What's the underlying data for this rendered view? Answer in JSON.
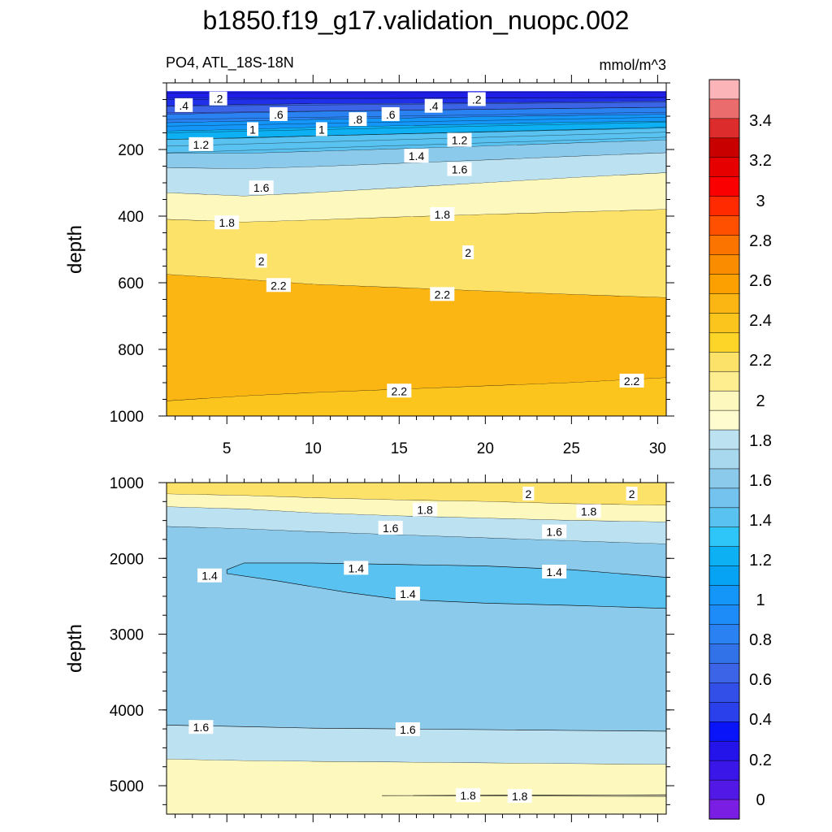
{
  "figure": {
    "title": "b1850.f19_g17.validation_nuopc.002",
    "left_subtitle": "PO4, ATL_18S-18N",
    "right_subtitle": "mmol/m^3"
  },
  "chart_data": [
    {
      "type": "heatmap",
      "panel": "upper",
      "variable": "PO4",
      "region": "ATL_18S-18N",
      "units": "mmol/m^3",
      "xlabel": "",
      "ylabel": "depth",
      "xlim": [
        1.5,
        30.5
      ],
      "ylim": [
        0,
        1000
      ],
      "y_reversed": true,
      "x_ticks": [
        5,
        10,
        15,
        20,
        25,
        30
      ],
      "y_ticks": [
        200,
        400,
        600,
        800,
        1000
      ],
      "bands": [
        {
          "value": 0.1,
          "color": "#1e1ee6",
          "y0": [
            25,
            25,
            25,
            25,
            25,
            25,
            25
          ],
          "y1": [
            45,
            45,
            45,
            45,
            45,
            45,
            45
          ]
        },
        {
          "value": 0.3,
          "color": "#2030e8",
          "y0": [
            45,
            45,
            45,
            45,
            45,
            45,
            45
          ],
          "y1": [
            70,
            65,
            63,
            62,
            60,
            58,
            55
          ]
        },
        {
          "value": 0.5,
          "color": "#3c64e6",
          "y0": [
            70,
            65,
            63,
            62,
            60,
            58,
            55
          ],
          "y1": [
            95,
            90,
            86,
            83,
            80,
            77,
            74
          ]
        },
        {
          "value": 0.7,
          "color": "#2a82f2",
          "y0": [
            95,
            90,
            86,
            83,
            80,
            77,
            74
          ],
          "y1": [
            120,
            115,
            110,
            106,
            102,
            98,
            95
          ]
        },
        {
          "value": 0.9,
          "color": "#1496f8",
          "y0": [
            120,
            115,
            110,
            106,
            102,
            98,
            95
          ],
          "y1": [
            145,
            140,
            134,
            129,
            124,
            119,
            115
          ]
        },
        {
          "value": 1.1,
          "color": "#0eb0f4",
          "y0": [
            145,
            140,
            134,
            129,
            124,
            119,
            115
          ],
          "y1": [
            170,
            166,
            160,
            154,
            148,
            142,
            136
          ]
        },
        {
          "value": 1.3,
          "color": "#5ac2f0",
          "y0": [
            170,
            166,
            160,
            154,
            148,
            142,
            136
          ],
          "y1": [
            212,
            212,
            206,
            198,
            190,
            181,
            172
          ]
        },
        {
          "value": 1.5,
          "color": "#8ccaec",
          "y0": [
            212,
            212,
            206,
            198,
            190,
            181,
            172
          ],
          "y1": [
            255,
            258,
            252,
            242,
            232,
            221,
            210
          ]
        },
        {
          "value": 1.7,
          "color": "#bce2f2",
          "y0": [
            255,
            258,
            252,
            242,
            232,
            221,
            210
          ],
          "y1": [
            330,
            340,
            330,
            315,
            300,
            285,
            270
          ]
        },
        {
          "value": 1.9,
          "color": "#fdf9be",
          "y0": [
            330,
            340,
            330,
            315,
            300,
            285,
            270
          ],
          "y1": [
            410,
            418,
            412,
            403,
            395,
            388,
            380
          ]
        },
        {
          "value": 2.1,
          "color": "#fde26a",
          "y0": [
            410,
            418,
            412,
            403,
            395,
            388,
            380
          ],
          "y1": [
            575,
            590,
            605,
            615,
            625,
            635,
            645
          ]
        },
        {
          "value": 2.3,
          "color": "#fbb614",
          "y0": [
            575,
            590,
            605,
            615,
            625,
            635,
            645
          ],
          "y1": [
            955,
            940,
            930,
            920,
            910,
            900,
            885
          ]
        },
        {
          "value": 2.2,
          "color": "#fcc51e",
          "y0": [
            955,
            940,
            930,
            920,
            910,
            900,
            885
          ],
          "y1": [
            1000,
            1000,
            1000,
            1000,
            1000,
            1000,
            1000
          ]
        }
      ],
      "contour_labels": [
        {
          "text": ".4",
          "x": 2.5,
          "y": 68
        },
        {
          "text": ".2",
          "x": 4.5,
          "y": 48
        },
        {
          "text": ".6",
          "x": 8.0,
          "y": 95
        },
        {
          "text": ".8",
          "x": 12.6,
          "y": 110
        },
        {
          "text": ".6",
          "x": 14.5,
          "y": 95
        },
        {
          "text": ".4",
          "x": 17.0,
          "y": 70
        },
        {
          "text": ".2",
          "x": 19.5,
          "y": 50
        },
        {
          "text": "1",
          "x": 6.5,
          "y": 140
        },
        {
          "text": "1",
          "x": 10.5,
          "y": 140
        },
        {
          "text": "1.2",
          "x": 3.5,
          "y": 185
        },
        {
          "text": "1.2",
          "x": 18.5,
          "y": 172
        },
        {
          "text": "1.4",
          "x": 16.0,
          "y": 220
        },
        {
          "text": "1.6",
          "x": 18.5,
          "y": 260
        },
        {
          "text": "1.6",
          "x": 7.0,
          "y": 315
        },
        {
          "text": "1.8",
          "x": 5.0,
          "y": 420
        },
        {
          "text": "1.8",
          "x": 17.5,
          "y": 395
        },
        {
          "text": "2",
          "x": 7.0,
          "y": 535
        },
        {
          "text": "2",
          "x": 19.0,
          "y": 510
        },
        {
          "text": "2.2",
          "x": 8.0,
          "y": 608
        },
        {
          "text": "2.2",
          "x": 17.5,
          "y": 635
        },
        {
          "text": "2.2",
          "x": 15.0,
          "y": 925
        },
        {
          "text": "2.2",
          "x": 28.5,
          "y": 895
        }
      ]
    },
    {
      "type": "heatmap",
      "panel": "lower",
      "variable": "PO4",
      "units": "mmol/m^3",
      "xlabel": "",
      "ylabel": "depth",
      "xlim": [
        1.5,
        30.5
      ],
      "ylim": [
        1000,
        5375
      ],
      "y_reversed": true,
      "y_ticks": [
        1000,
        2000,
        3000,
        4000,
        5000
      ],
      "bands": [
        {
          "value": 2.1,
          "color": "#fde26a",
          "y0": [
            1000,
            1000,
            1000,
            1000,
            1000,
            1000,
            1000
          ],
          "y1": [
            1150,
            1170,
            1200,
            1230,
            1250,
            1280,
            1300
          ]
        },
        {
          "value": 1.9,
          "color": "#fdf9be",
          "y0": [
            1150,
            1170,
            1200,
            1230,
            1250,
            1280,
            1300
          ],
          "y1": [
            1320,
            1350,
            1400,
            1440,
            1470,
            1500,
            1520
          ]
        },
        {
          "value": 1.7,
          "color": "#bce2f2",
          "y0": [
            1320,
            1350,
            1400,
            1440,
            1470,
            1500,
            1520
          ],
          "y1": [
            1580,
            1610,
            1650,
            1690,
            1730,
            1770,
            1810
          ]
        },
        {
          "value": 1.5,
          "color": "#8ccaec",
          "y0": [
            1580,
            1610,
            1650,
            1690,
            1730,
            1770,
            1810
          ],
          "y1": [
            5375,
            5375,
            5375,
            5375,
            5375,
            5375,
            5375
          ]
        },
        {
          "value": 1.6,
          "color": "#bce2f2",
          "y0": [
            4200,
            4220,
            4240,
            4250,
            4260,
            4270,
            4280
          ],
          "y1": [
            4650,
            4670,
            4680,
            4690,
            4700,
            4710,
            4720
          ]
        },
        {
          "value": 1.5,
          "color": "#8ccaec",
          "y0": [
            3800,
            3790,
            3770,
            3760,
            3740,
            3720,
            3700
          ],
          "y1": [
            4200,
            4220,
            4240,
            4250,
            4260,
            4270,
            4280
          ]
        },
        {
          "value": 1.8,
          "color": "#fdf9be",
          "y0": [
            4650,
            4670,
            4680,
            4690,
            4700,
            4710,
            4720
          ],
          "y1": [
            5375,
            5375,
            5375,
            5375,
            5375,
            5375,
            5375
          ]
        }
      ],
      "blob": {
        "value": 1.3,
        "color": "#5ac2f0",
        "top": [
          [
            5.0,
            2150
          ],
          [
            6.0,
            2060
          ],
          [
            10.0,
            2060
          ],
          [
            15.0,
            2080
          ],
          [
            20.0,
            2100
          ],
          [
            25.0,
            2150
          ],
          [
            30.5,
            2250
          ]
        ],
        "bottom": [
          [
            30.5,
            2660
          ],
          [
            25.0,
            2620
          ],
          [
            20.0,
            2590
          ],
          [
            15.0,
            2540
          ],
          [
            12.0,
            2450
          ],
          [
            8.0,
            2300
          ],
          [
            5.0,
            2200
          ]
        ]
      },
      "contour_labels": [
        {
          "text": "2",
          "x": 22.5,
          "y": 1150
        },
        {
          "text": "2",
          "x": 28.5,
          "y": 1150
        },
        {
          "text": "1.8",
          "x": 16.5,
          "y": 1360
        },
        {
          "text": "1.8",
          "x": 26.0,
          "y": 1380
        },
        {
          "text": "1.6",
          "x": 14.5,
          "y": 1600
        },
        {
          "text": "1.6",
          "x": 24.0,
          "y": 1650
        },
        {
          "text": "1.4",
          "x": 4.0,
          "y": 2230
        },
        {
          "text": "1.4",
          "x": 12.5,
          "y": 2130
        },
        {
          "text": "1.4",
          "x": 15.5,
          "y": 2470
        },
        {
          "text": "1.4",
          "x": 24.0,
          "y": 2180
        },
        {
          "text": "1.6",
          "x": 3.5,
          "y": 4230
        },
        {
          "text": "1.6",
          "x": 15.5,
          "y": 4260
        },
        {
          "text": "1.8",
          "x": 19.0,
          "y": 5130
        },
        {
          "text": "1.8",
          "x": 22.0,
          "y": 5140
        }
      ]
    }
  ],
  "colorbar": {
    "labels": [
      "3.4",
      "3.2",
      "3",
      "2.8",
      "2.6",
      "2.4",
      "2.2",
      "2",
      "1.8",
      "1.6",
      "1.4",
      "1.2",
      "1",
      "0.8",
      "0.6",
      "0.4",
      "0.2",
      "0"
    ],
    "colors_top_to_bottom": [
      "#fbb4b8",
      "#ea6c6c",
      "#dc2c2c",
      "#c80000",
      "#e60000",
      "#fa0000",
      "#ff2a00",
      "#ff5000",
      "#fc7400",
      "#fa8c00",
      "#fba000",
      "#fbb614",
      "#fcc51e",
      "#fdd428",
      "#fde26a",
      "#feee90",
      "#fdf9be",
      "#fffccf",
      "#bce2f2",
      "#a8d8ee",
      "#8ccaec",
      "#74c2ee",
      "#5ac2f0",
      "#2ec6f8",
      "#0eb0f4",
      "#06a2f4",
      "#1496f8",
      "#1e8cf8",
      "#2a82f2",
      "#3272e8",
      "#3c64e6",
      "#3250e8",
      "#2a40ea",
      "#0a14f8",
      "#2414ea",
      "#3a16e8",
      "#5218e6",
      "#7a1ee4"
    ]
  }
}
